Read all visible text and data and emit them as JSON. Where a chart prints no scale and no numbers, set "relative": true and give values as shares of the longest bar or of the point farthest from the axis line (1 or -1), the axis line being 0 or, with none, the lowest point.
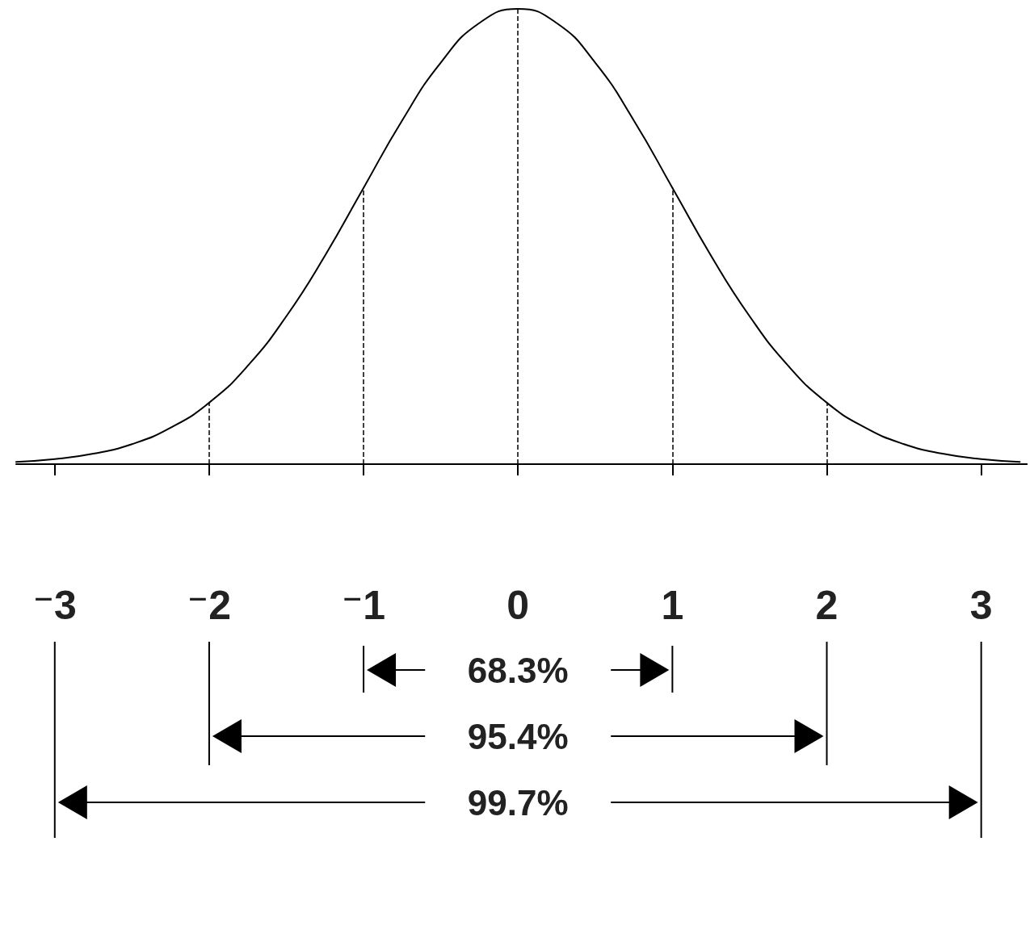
{
  "chart_data": {
    "type": "line",
    "relative": true,
    "x": [
      -3.25,
      -3,
      -2.75,
      -2.5,
      -2.25,
      -2,
      -1.75,
      -1.5,
      -1.25,
      -1,
      -0.75,
      -0.5,
      -0.25,
      0,
      0.25,
      0.5,
      0.75,
      1,
      1.25,
      1.5,
      1.75,
      2,
      2.25,
      2.5,
      2.75,
      3,
      3.25
    ],
    "series": [
      {
        "color": "#000000",
        "values": [
          0.005,
          0.011,
          0.023,
          0.044,
          0.08,
          0.135,
          0.216,
          0.325,
          0.458,
          0.607,
          0.755,
          0.882,
          0.969,
          1,
          0.969,
          0.882,
          0.755,
          0.607,
          0.458,
          0.325,
          0.216,
          0.135,
          0.08,
          0.044,
          0.023,
          0.011,
          0.005
        ]
      }
    ],
    "xlim": [
      -3.25,
      3.3
    ],
    "xticks": [
      {
        "value": -3,
        "label": "⁻3"
      },
      {
        "value": -2,
        "label": "⁻2"
      },
      {
        "value": -1,
        "label": "⁻1"
      },
      0,
      1,
      2,
      3
    ],
    "ref_lines": [
      {
        "axis": "x",
        "value": -2,
        "line_style": "dashed"
      },
      {
        "axis": "x",
        "value": -1,
        "line_style": "dashed"
      },
      {
        "axis": "x",
        "value": 0,
        "line_style": "dashed"
      },
      {
        "axis": "x",
        "value": 1,
        "line_style": "dashed"
      },
      {
        "axis": "x",
        "value": 2,
        "line_style": "dashed"
      }
    ],
    "annotations": [
      "68.3%",
      "95.4%",
      "99.7%"
    ],
    "grid": false,
    "marker": "none",
    "line_style": "solid"
  }
}
